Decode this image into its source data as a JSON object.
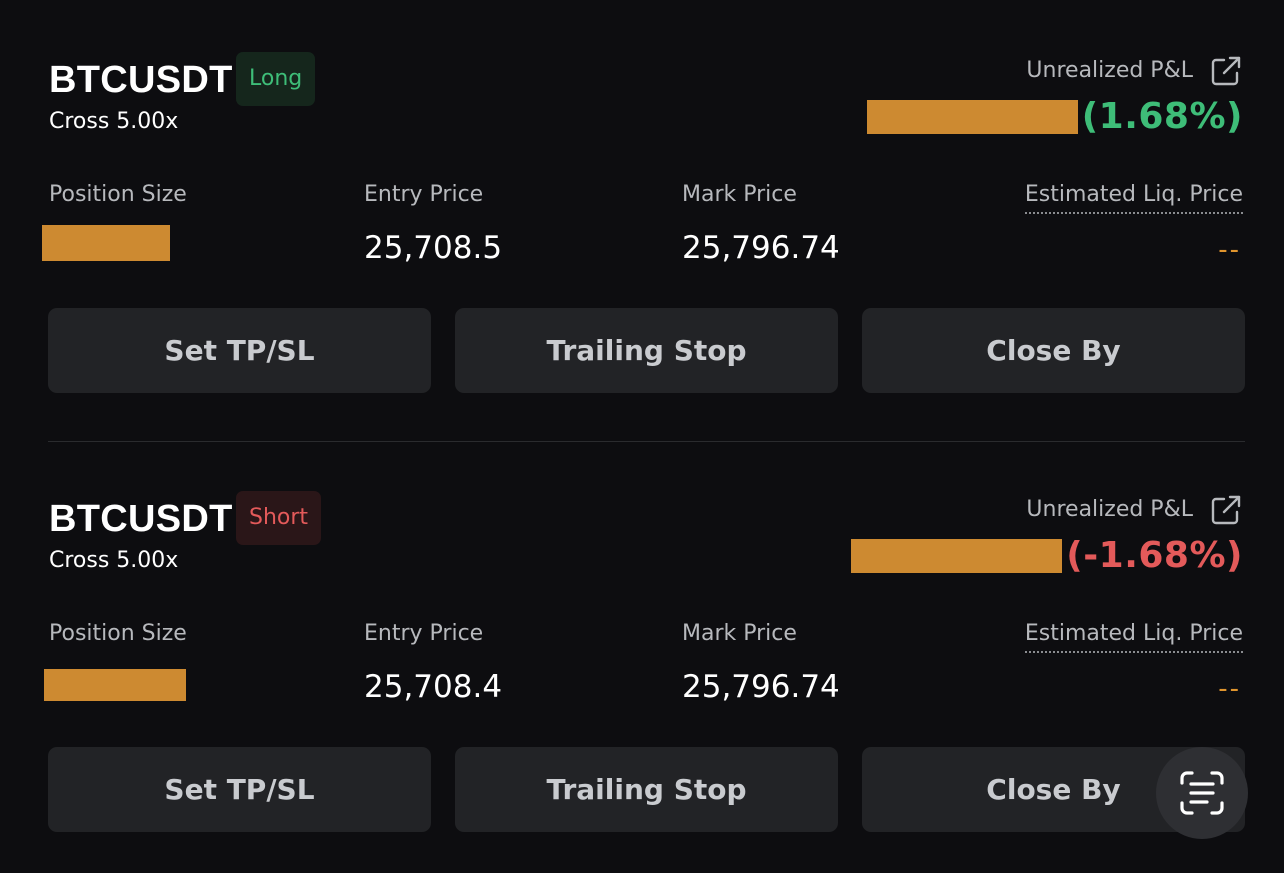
{
  "positions": [
    {
      "symbol": "BTCUSDT",
      "side": "Long",
      "leverage": "Cross 5.00x",
      "pnl_label": "Unrealized P&L",
      "pnl_percent": "(1.68%)",
      "position_size_label": "Position Size",
      "entry_price_label": "Entry Price",
      "entry_price": "25,708.5",
      "mark_price_label": "Mark Price",
      "mark_price": "25,796.74",
      "liq_price_label": "Estimated Liq. Price",
      "liq_price": "--",
      "buttons": {
        "tpsl": "Set TP/SL",
        "trailing": "Trailing Stop",
        "close_by": "Close By"
      }
    },
    {
      "symbol": "BTCUSDT",
      "side": "Short",
      "leverage": "Cross 5.00x",
      "pnl_label": "Unrealized P&L",
      "pnl_percent": "(-1.68%)",
      "position_size_label": "Position Size",
      "entry_price_label": "Entry Price",
      "entry_price": "25,708.4",
      "mark_price_label": "Mark Price",
      "mark_price": "25,796.74",
      "liq_price_label": "Estimated Liq. Price",
      "liq_price": "--",
      "buttons": {
        "tpsl": "Set TP/SL",
        "trailing": "Trailing Stop",
        "close_by": "Close By"
      }
    }
  ],
  "icons": {
    "share": "share-icon",
    "scan": "scan-text-icon"
  },
  "colors": {
    "background": "#0d0d10",
    "profit": "#3ebd78",
    "loss": "#e35a5a",
    "liq_placeholder": "#e0952e",
    "redaction": "#cd8a31",
    "button_bg": "#222326"
  }
}
